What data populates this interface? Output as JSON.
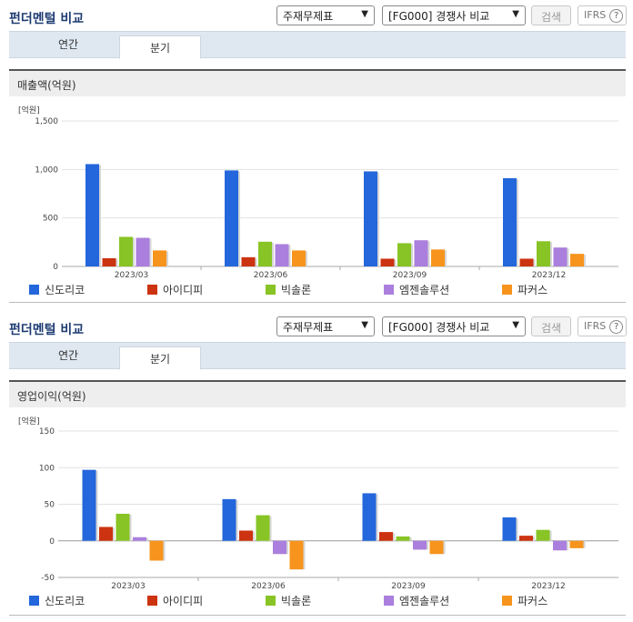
{
  "sections": [
    {
      "title": "펀더멘털 비교",
      "select1": "주재무제표",
      "select2": "[FG000] 경쟁사 비교",
      "search_label": "검색",
      "ifrs_label": "IFRS",
      "help_glyph": "?",
      "tabs": [
        "연간",
        "분기"
      ],
      "active_tab": "분기",
      "chart_title": "매출액(억원)",
      "unit": "[억원]",
      "chart_data": {
        "type": "bar",
        "title": "매출액(억원)",
        "ylabel": "[억원]",
        "categories": [
          "2023/03",
          "2023/06",
          "2023/09",
          "2023/12"
        ],
        "ylim": [
          0,
          1500
        ],
        "yticks": [
          0,
          500,
          1000,
          1500
        ],
        "ytick_labels": [
          "0",
          "500",
          "1,000",
          "1,500"
        ],
        "series": [
          {
            "name": "신도리코",
            "color": "#2466db",
            "values": [
              1055,
              990,
              980,
              910
            ]
          },
          {
            "name": "아이디피",
            "color": "#cc3311",
            "values": [
              85,
              95,
              80,
              80
            ]
          },
          {
            "name": "빅솔론",
            "color": "#88c425",
            "values": [
              305,
              255,
              240,
              260
            ]
          },
          {
            "name": "엠젠솔루션",
            "color": "#aa7fdd",
            "values": [
              295,
              230,
              270,
              195
            ]
          },
          {
            "name": "파커스",
            "color": "#f7941d",
            "values": [
              165,
              165,
              175,
              130
            ]
          }
        ]
      }
    },
    {
      "title": "펀더멘털 비교",
      "select1": "주재무제표",
      "select2": "[FG000] 경쟁사 비교",
      "search_label": "검색",
      "ifrs_label": "IFRS",
      "help_glyph": "?",
      "tabs": [
        "연간",
        "분기"
      ],
      "active_tab": "분기",
      "chart_title": "영업이익(억원)",
      "unit": "[억원]",
      "chart_data": {
        "type": "bar",
        "title": "영업이익(억원)",
        "ylabel": "[억원]",
        "categories": [
          "2023/03",
          "2023/06",
          "2023/09",
          "2023/12"
        ],
        "ylim": [
          -50,
          150
        ],
        "yticks": [
          -50,
          0,
          50,
          100,
          150
        ],
        "ytick_labels": [
          "-50",
          "0",
          "50",
          "100",
          "150"
        ],
        "series": [
          {
            "name": "신도리코",
            "color": "#2466db",
            "values": [
              97,
              57,
              65,
              32
            ]
          },
          {
            "name": "아이디피",
            "color": "#cc3311",
            "values": [
              19,
              14,
              12,
              7
            ]
          },
          {
            "name": "빅솔론",
            "color": "#88c425",
            "values": [
              37,
              35,
              6,
              15
            ]
          },
          {
            "name": "엠젠솔루션",
            "color": "#aa7fdd",
            "values": [
              5,
              -18,
              -12,
              -13
            ]
          },
          {
            "name": "파커스",
            "color": "#f7941d",
            "values": [
              -27,
              -39,
              -18,
              -10
            ]
          }
        ]
      }
    }
  ]
}
